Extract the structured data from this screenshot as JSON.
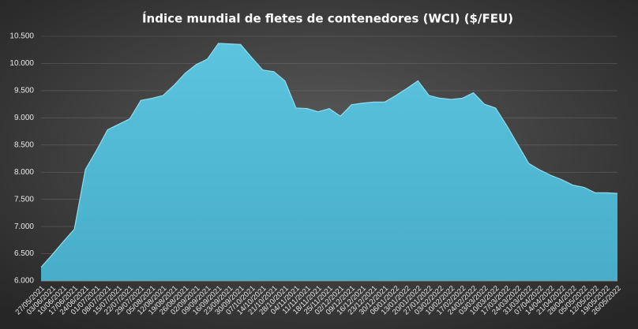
{
  "chart_data": {
    "type": "area",
    "title": "Índice mundial de fletes de contenedores (WCI) ($/FEU)",
    "color": "#4fb8d4",
    "categories": [
      "27/05/2021",
      "03/06/2021",
      "10/06/2021",
      "17/06/2021",
      "24/06/2021",
      "01/07/2021",
      "08/07/2021",
      "15/07/2021",
      "22/07/2021",
      "29/07/2021",
      "05/08/2021",
      "12/08/2021",
      "19/08/2021",
      "26/08/2021",
      "02/09/2021",
      "09/09/2021",
      "16/09/2021",
      "23/09/2021",
      "30/09/2021",
      "07/10/2021",
      "14/10/2021",
      "21/10/2021",
      "28/10/2021",
      "04/11/2021",
      "11/11/2021",
      "18/11/2021",
      "25/11/2021",
      "02/12/2021",
      "09/12/2021",
      "16/12/2021",
      "23/12/2021",
      "30/12/2021",
      "06/01/2022",
      "13/01/2022",
      "20/01/2022",
      "27/01/2022",
      "03/02/2022",
      "10/02/2022",
      "17/02/2022",
      "24/02/2022",
      "03/03/2022",
      "10/03/2022",
      "17/03/2022",
      "24/03/2022",
      "31/03/2022",
      "07/04/2022",
      "14/04/2022",
      "21/04/2022",
      "28/04/2022",
      "05/05/2022",
      "12/05/2022",
      "19/05/2022",
      "26/05/2022"
    ],
    "values": [
      6250,
      6480,
      6720,
      6950,
      8050,
      8400,
      8780,
      8880,
      8980,
      9320,
      9360,
      9410,
      9600,
      9820,
      9980,
      10080,
      10370,
      10360,
      10350,
      10110,
      9880,
      9850,
      9680,
      9180,
      9170,
      9110,
      9170,
      9030,
      9240,
      9270,
      9290,
      9290,
      9410,
      9540,
      9680,
      9410,
      9360,
      9340,
      9360,
      9460,
      9250,
      9180,
      8860,
      8510,
      8160,
      8040,
      7940,
      7860,
      7760,
      7720,
      7620,
      7620,
      7610
    ],
    "ylim": [
      6000,
      10500
    ],
    "yticks": [
      {
        "value": 6000,
        "label": "6.000"
      },
      {
        "value": 6500,
        "label": "6.500"
      },
      {
        "value": 7000,
        "label": "7.000"
      },
      {
        "value": 7500,
        "label": "7.500"
      },
      {
        "value": 8000,
        "label": "8.000"
      },
      {
        "value": 8500,
        "label": "8.500"
      },
      {
        "value": 9000,
        "label": "9.000"
      },
      {
        "value": 9500,
        "label": "9.500"
      },
      {
        "value": 10000,
        "label": "10.000"
      },
      {
        "value": 10500,
        "label": "10.500"
      }
    ],
    "grid": true
  }
}
